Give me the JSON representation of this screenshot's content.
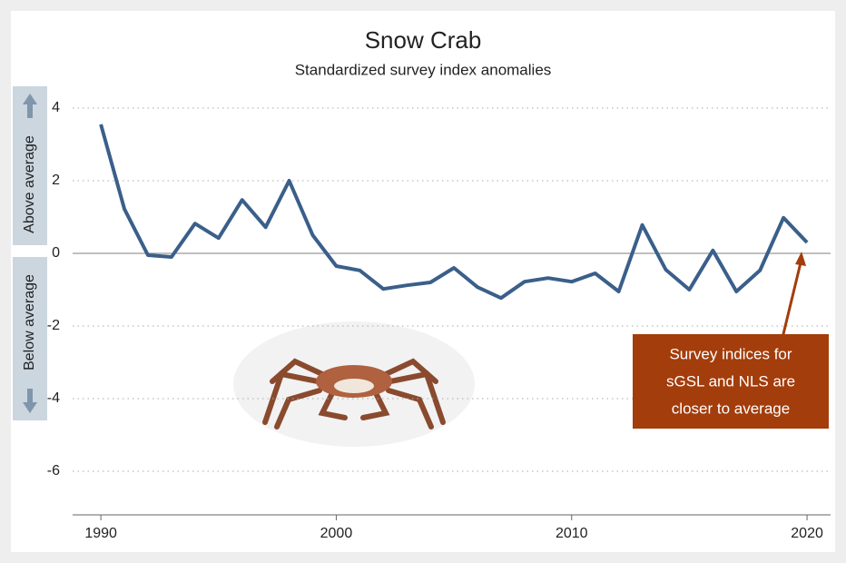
{
  "chart_data": {
    "type": "line",
    "title": "Snow Crab",
    "subtitle": "Standardized survey index anomalies",
    "above_label": "Above average",
    "below_label": "Below average",
    "x": [
      1990,
      1991,
      1992,
      1993,
      1994,
      1995,
      1996,
      1997,
      1998,
      1999,
      2000,
      2001,
      2002,
      2003,
      2004,
      2005,
      2006,
      2007,
      2008,
      2009,
      2010,
      2011,
      2012,
      2013,
      2014,
      2015,
      2016,
      2017,
      2018,
      2019,
      2020
    ],
    "series": [
      {
        "color": "#3a5f8a",
        "values": [
          3.55,
          1.22,
          -0.05,
          -0.1,
          0.82,
          0.42,
          1.47,
          0.72,
          2.0,
          0.5,
          -0.35,
          -0.47,
          -0.98,
          -0.88,
          -0.8,
          -0.4,
          -0.93,
          -1.23,
          -0.78,
          -0.68,
          -0.78,
          -0.55,
          -1.05,
          0.78,
          -0.45,
          -1.0,
          0.08,
          -1.05,
          -0.47,
          0.98,
          0.3
        ]
      }
    ],
    "xlim": [
      1988.8,
      2021
    ],
    "xticks": [
      1990,
      2000,
      2010,
      2020
    ],
    "ylim": [
      -7.2,
      4.6
    ],
    "yticks": [
      4,
      2,
      0,
      -2,
      -4,
      -6
    ],
    "grid": true,
    "annotation": {
      "lines": [
        "Survey indices for",
        "sGSL and NLS are",
        "closer to average"
      ],
      "color": "#a33d0b"
    }
  }
}
